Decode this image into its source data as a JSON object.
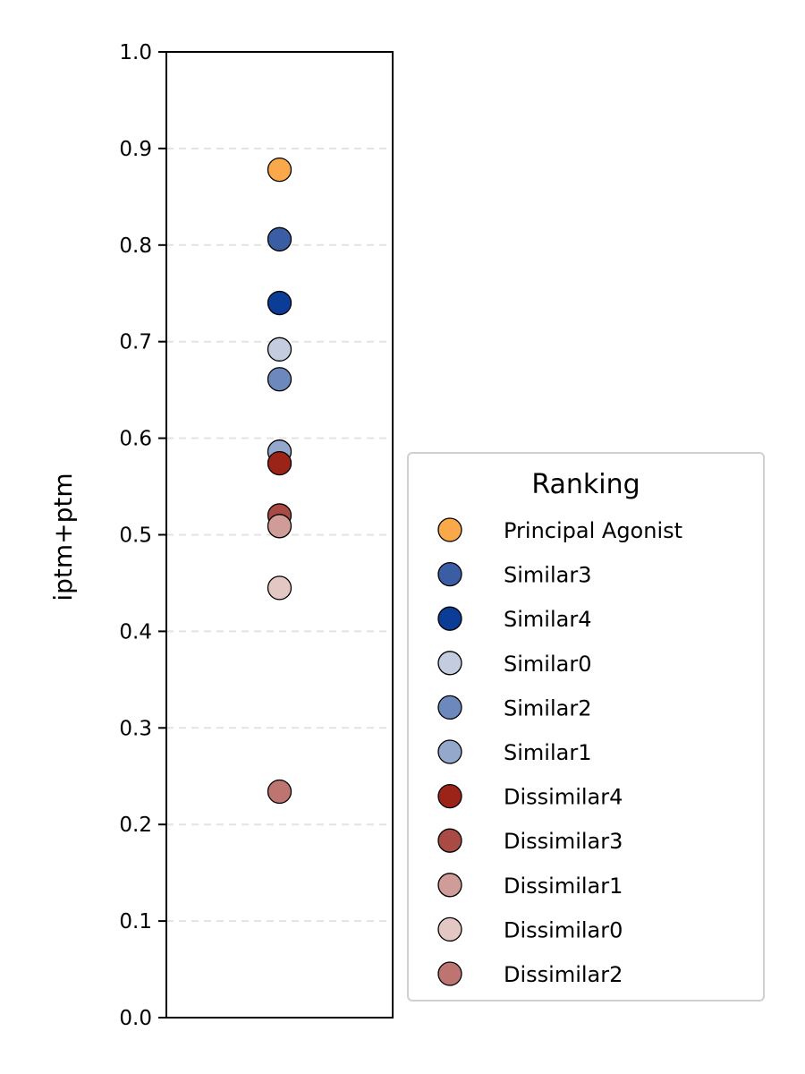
{
  "chart_data": {
    "type": "scatter",
    "ylabel": "iptm+ptm",
    "ylim": [
      0.0,
      1.0
    ],
    "yticks": [
      "0.0",
      "0.1",
      "0.2",
      "0.3",
      "0.4",
      "0.5",
      "0.6",
      "0.7",
      "0.8",
      "0.9",
      "1.0"
    ],
    "ytick_values": [
      0.0,
      0.1,
      0.2,
      0.3,
      0.4,
      0.5,
      0.6,
      0.7,
      0.8,
      0.9,
      1.0
    ],
    "grid": "y dashed",
    "legend": {
      "title": "Ranking",
      "placement": "lower-right outside"
    },
    "series": [
      {
        "name": "Principal Agonist",
        "y": 0.878,
        "color": "#F9A84A"
      },
      {
        "name": "Similar3",
        "y": 0.806,
        "color": "#3A5DA3"
      },
      {
        "name": "Similar4",
        "y": 0.74,
        "color": "#0B3D96"
      },
      {
        "name": "Similar0",
        "y": 0.692,
        "color": "#C3CDDF"
      },
      {
        "name": "Similar2",
        "y": 0.661,
        "color": "#6C88BD"
      },
      {
        "name": "Similar1",
        "y": 0.586,
        "color": "#94A8CC"
      },
      {
        "name": "Dissimilar4",
        "y": 0.574,
        "color": "#9C2318"
      },
      {
        "name": "Dissimilar3",
        "y": 0.52,
        "color": "#AA4A44"
      },
      {
        "name": "Dissimilar1",
        "y": 0.509,
        "color": "#D09C98"
      },
      {
        "name": "Dissimilar0",
        "y": 0.445,
        "color": "#E3C7C3"
      },
      {
        "name": "Dissimilar2",
        "y": 0.234,
        "color": "#BE7572"
      }
    ]
  }
}
